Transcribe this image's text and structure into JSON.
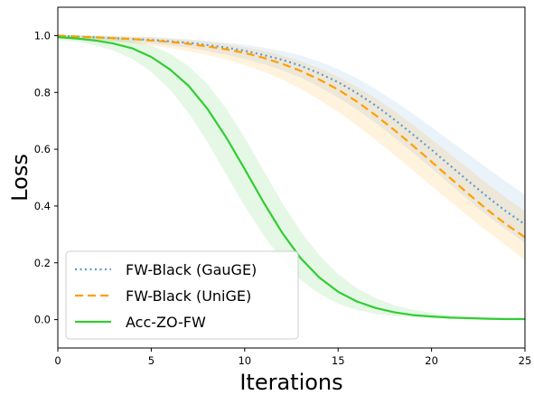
{
  "chart_data": {
    "type": "line",
    "xlabel": "Iterations",
    "ylabel": "Loss",
    "xlim": [
      0,
      25
    ],
    "ylim": [
      -0.1,
      1.1
    ],
    "xticks": [
      0,
      5,
      10,
      15,
      20,
      25
    ],
    "xtick_labels": [
      "0",
      "5",
      "10",
      "15",
      "20",
      "25"
    ],
    "yticks": [
      0.0,
      0.2,
      0.4,
      0.6,
      0.8,
      1.0
    ],
    "ytick_labels": [
      "0.0",
      "0.2",
      "0.4",
      "0.6",
      "0.8",
      "1.0"
    ],
    "grid": false,
    "legend_position": "lower-left",
    "x": [
      0,
      1,
      2,
      3,
      4,
      5,
      6,
      7,
      8,
      9,
      10,
      11,
      12,
      13,
      14,
      15,
      16,
      17,
      18,
      19,
      20,
      21,
      22,
      23,
      24,
      25
    ],
    "series": [
      {
        "name": "FW-Black (GauGE)",
        "color": "#5b9bd5",
        "style": "dotted",
        "values": [
          1.0,
          0.997,
          0.994,
          0.991,
          0.988,
          0.985,
          0.98,
          0.975,
          0.967,
          0.958,
          0.947,
          0.932,
          0.915,
          0.894,
          0.867,
          0.836,
          0.798,
          0.754,
          0.705,
          0.652,
          0.598,
          0.542,
          0.486,
          0.432,
          0.381,
          0.335
        ],
        "band_upper": [
          1.0,
          1.0,
          1.0,
          0.998,
          0.996,
          0.994,
          0.991,
          0.987,
          0.982,
          0.976,
          0.968,
          0.958,
          0.946,
          0.93,
          0.908,
          0.882,
          0.85,
          0.812,
          0.77,
          0.725,
          0.678,
          0.629,
          0.581,
          0.532,
          0.485,
          0.44
        ],
        "band_lower": [
          0.99,
          0.988,
          0.985,
          0.981,
          0.977,
          0.972,
          0.965,
          0.957,
          0.946,
          0.933,
          0.918,
          0.9,
          0.878,
          0.852,
          0.82,
          0.782,
          0.74,
          0.693,
          0.642,
          0.588,
          0.532,
          0.476,
          0.42,
          0.366,
          0.316,
          0.27
        ]
      },
      {
        "name": "FW-Black (UniGE)",
        "color": "#ff9f00",
        "style": "dashed",
        "values": [
          1.0,
          0.997,
          0.994,
          0.991,
          0.988,
          0.983,
          0.978,
          0.971,
          0.962,
          0.952,
          0.939,
          0.922,
          0.901,
          0.876,
          0.845,
          0.81,
          0.768,
          0.72,
          0.668,
          0.613,
          0.556,
          0.498,
          0.441,
          0.386,
          0.335,
          0.29
        ],
        "band_upper": [
          1.0,
          1.0,
          1.0,
          0.999,
          0.997,
          0.995,
          0.99,
          0.985,
          0.978,
          0.97,
          0.96,
          0.947,
          0.93,
          0.91,
          0.885,
          0.855,
          0.82,
          0.78,
          0.735,
          0.686,
          0.635,
          0.582,
          0.53,
          0.478,
          0.428,
          0.382
        ],
        "band_lower": [
          0.99,
          0.987,
          0.983,
          0.978,
          0.972,
          0.965,
          0.956,
          0.945,
          0.932,
          0.916,
          0.896,
          0.873,
          0.845,
          0.812,
          0.774,
          0.731,
          0.684,
          0.633,
          0.58,
          0.525,
          0.47,
          0.415,
          0.362,
          0.31,
          0.26,
          0.21
        ]
      },
      {
        "name": "Acc-ZO-FW",
        "color": "#33cc33",
        "style": "solid",
        "values": [
          0.995,
          0.99,
          0.983,
          0.972,
          0.955,
          0.925,
          0.881,
          0.823,
          0.743,
          0.643,
          0.53,
          0.414,
          0.306,
          0.216,
          0.148,
          0.098,
          0.064,
          0.041,
          0.026,
          0.016,
          0.011,
          0.007,
          0.005,
          0.003,
          0.002,
          0.002
        ],
        "band_upper": [
          1.0,
          1.0,
          0.998,
          0.993,
          0.982,
          0.965,
          0.937,
          0.892,
          0.83,
          0.745,
          0.64,
          0.526,
          0.412,
          0.31,
          0.226,
          0.16,
          0.111,
          0.076,
          0.051,
          0.035,
          0.024,
          0.016,
          0.011,
          0.008,
          0.006,
          0.005
        ],
        "band_lower": [
          0.985,
          0.978,
          0.965,
          0.947,
          0.918,
          0.872,
          0.81,
          0.727,
          0.626,
          0.512,
          0.4,
          0.298,
          0.21,
          0.14,
          0.09,
          0.056,
          0.034,
          0.02,
          0.012,
          0.007,
          0.004,
          0.003,
          0.002,
          0.001,
          0.001,
          0.001
        ]
      }
    ]
  }
}
